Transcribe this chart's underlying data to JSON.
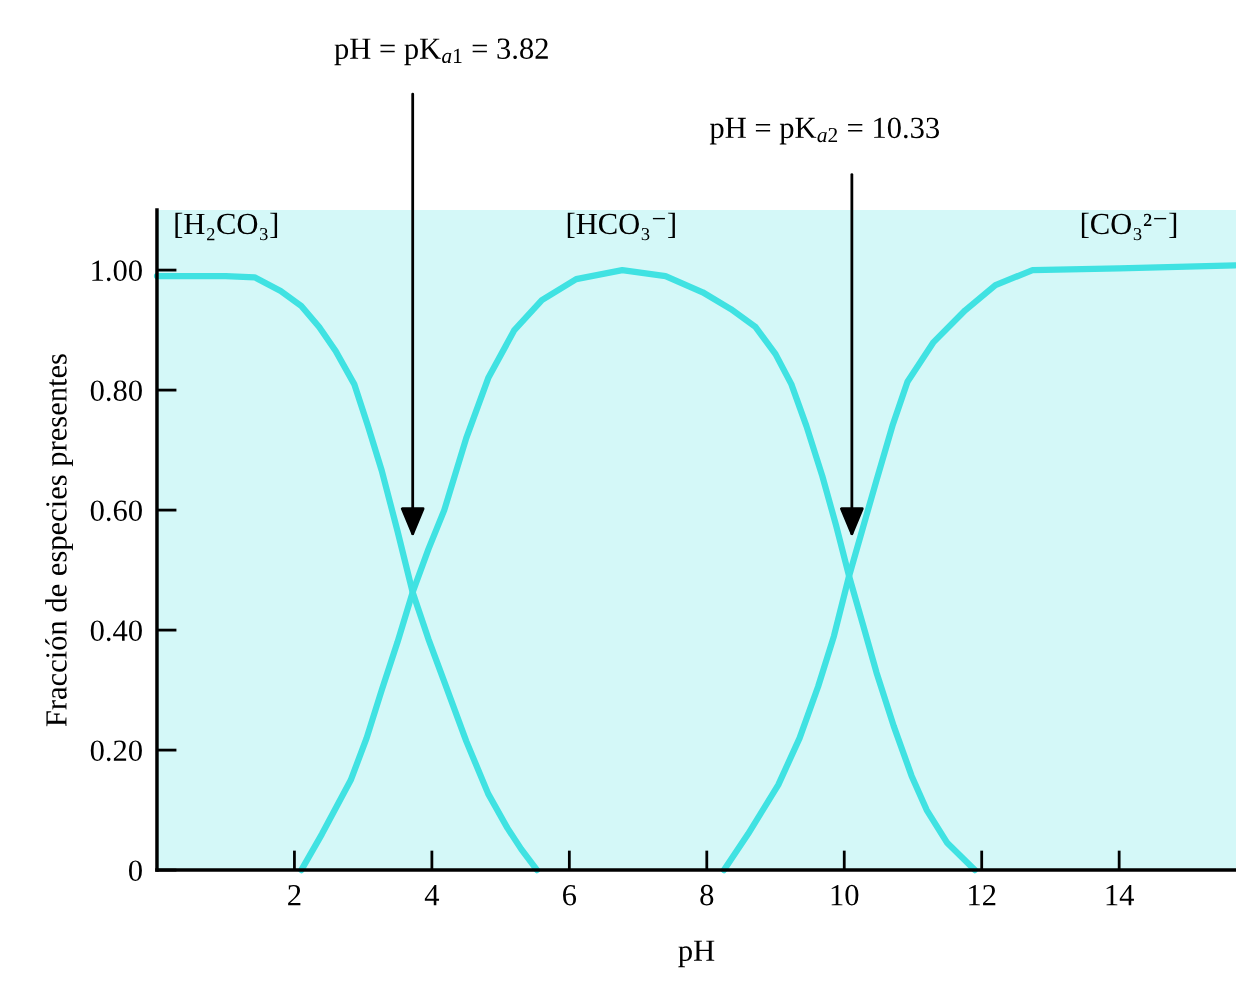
{
  "chart_data": {
    "type": "line",
    "xlabel": "pH",
    "ylabel": "Fracción de especies presentes",
    "xlim": [
      0,
      15.7
    ],
    "ylim": [
      0,
      1.1
    ],
    "xticks": [
      2,
      4,
      6,
      8,
      10,
      12,
      14
    ],
    "yticks": [
      {
        "value": 0,
        "label": "0"
      },
      {
        "value": 0.2,
        "label": "0.20"
      },
      {
        "value": 0.4,
        "label": "0.40"
      },
      {
        "value": 0.6,
        "label": "0.60"
      },
      {
        "value": 0.8,
        "label": "0.80"
      },
      {
        "value": 1.0,
        "label": "1.00"
      }
    ],
    "grid": false,
    "legend": false,
    "marker": "none",
    "line_style": "solid",
    "series": [
      {
        "name": "[H₂CO₃]",
        "color": "#40e2e2",
        "x": [
          0,
          0.5,
          1.0,
          1.42,
          1.8,
          2.1,
          2.36,
          2.6,
          2.87,
          3.07,
          3.27,
          3.5,
          3.72,
          3.95,
          4.18,
          4.5,
          4.82,
          5.1,
          5.3,
          5.53
        ],
        "values": [
          0.99,
          0.99,
          0.99,
          0.988,
          0.965,
          0.94,
          0.905,
          0.865,
          0.81,
          0.74,
          0.666,
          0.565,
          0.463,
          0.385,
          0.314,
          0.215,
          0.127,
          0.07,
          0.035,
          0.0
        ]
      },
      {
        "name": "[HCO₃⁻]",
        "color": "#40e2e2",
        "x": [
          2.1,
          2.4,
          2.82,
          3.05,
          3.27,
          3.5,
          3.72,
          3.95,
          4.18,
          4.5,
          4.82,
          5.2,
          5.6,
          6.1,
          6.77,
          7.4,
          7.94,
          8.35,
          8.71,
          9.0,
          9.23,
          9.45,
          9.68,
          9.88,
          10.07,
          10.27,
          10.47,
          10.72,
          10.98,
          11.2,
          11.5,
          11.9
        ],
        "values": [
          0.0,
          0.06,
          0.15,
          0.22,
          0.3,
          0.38,
          0.463,
          0.535,
          0.6,
          0.72,
          0.82,
          0.9,
          0.95,
          0.985,
          1.0,
          0.99,
          0.963,
          0.935,
          0.905,
          0.86,
          0.81,
          0.74,
          0.657,
          0.575,
          0.49,
          0.41,
          0.329,
          0.24,
          0.157,
          0.1,
          0.045,
          0.0
        ]
      },
      {
        "name": "[CO₃²⁻]",
        "color": "#40e2e2",
        "x": [
          8.25,
          8.6,
          9.04,
          9.35,
          9.62,
          9.85,
          10.07,
          10.27,
          10.47,
          10.7,
          10.92,
          11.3,
          11.76,
          12.2,
          12.74,
          14.0,
          15.69
        ],
        "values": [
          0.0,
          0.06,
          0.142,
          0.22,
          0.306,
          0.39,
          0.49,
          0.57,
          0.65,
          0.74,
          0.814,
          0.88,
          0.933,
          0.975,
          1.0,
          1.003,
          1.008
        ]
      }
    ],
    "annotations": [
      "pH = pK$_{a1}$ = 3.82",
      "pH = pK$_{a2}$ = 10.33"
    ]
  }
}
